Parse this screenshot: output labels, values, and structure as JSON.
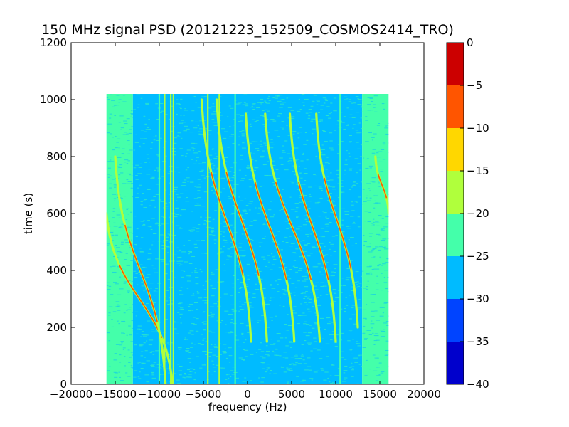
{
  "chart_data": {
    "type": "heatmap",
    "title": "150 MHz signal PSD (20121223_152509_COSMOS2414_TRO)",
    "xlabel": "frequency (Hz)",
    "ylabel": "time (s)",
    "xlim": [
      -20000,
      20000
    ],
    "ylim": [
      0,
      1200
    ],
    "x_ticks": [
      -20000,
      -15000,
      -10000,
      -5000,
      0,
      5000,
      10000,
      15000,
      20000
    ],
    "x_tick_labels": [
      "−20000",
      "−15000",
      "−10000",
      "−5000",
      "0",
      "5000",
      "10000",
      "15000",
      "20000"
    ],
    "y_ticks": [
      0,
      200,
      400,
      600,
      800,
      1000,
      1200
    ],
    "y_tick_labels": [
      "0",
      "200",
      "400",
      "600",
      "800",
      "1000",
      "1200"
    ],
    "data_extent": {
      "x": [
        -16000,
        16000
      ],
      "y": [
        0,
        1020
      ]
    },
    "grid": false,
    "colorbar": {
      "levels": [
        -40,
        -35,
        -30,
        -25,
        -20,
        -15,
        -10,
        -5,
        0
      ],
      "tick_labels": [
        "−40",
        "−35",
        "−30",
        "−25",
        "−20",
        "−15",
        "−10",
        "−5",
        "0"
      ],
      "colors": [
        "#0000cc",
        "#0044ff",
        "#00bbff",
        "#44ffaa",
        "#b0ff3c",
        "#ffd700",
        "#ff5500",
        "#cc0000"
      ]
    },
    "background_regions": [
      {
        "x": [
          -16000,
          -13000
        ],
        "level": "-25 to -20"
      },
      {
        "x": [
          -13000,
          13000
        ],
        "level": "-30 to -25"
      },
      {
        "x": [
          13000,
          16000
        ],
        "level": "-25 to -20"
      }
    ],
    "vertical_lines": [
      {
        "x": -10000,
        "level": "-25 to -20"
      },
      {
        "x": -9400,
        "level": "-20 to -15"
      },
      {
        "x": -8700,
        "level": "-20 to -15"
      },
      {
        "x": -8400,
        "level": "-20 to -15"
      },
      {
        "x": -4500,
        "level": "-20 to -15"
      },
      {
        "x": -3200,
        "level": "-20 to -15"
      },
      {
        "x": -1400,
        "level": "-25 to -20"
      },
      {
        "x": 10500,
        "level": "-25 to -20"
      }
    ],
    "series": [
      {
        "x_start": -16000,
        "t_start": 600,
        "x_end": -8500,
        "t_end": 0
      },
      {
        "x_start": -15000,
        "t_start": 800,
        "x_end": -9300,
        "t_end": 0
      },
      {
        "x_start": -5200,
        "t_start": 1000,
        "x_end": 400,
        "t_end": 150
      },
      {
        "x_start": -3500,
        "t_start": 1000,
        "x_end": 2200,
        "t_end": 150
      },
      {
        "x_start": -200,
        "t_start": 950,
        "x_end": 5300,
        "t_end": 150
      },
      {
        "x_start": 2000,
        "t_start": 950,
        "x_end": 8200,
        "t_end": 150
      },
      {
        "x_start": 4800,
        "t_start": 950,
        "x_end": 10000,
        "t_end": 150
      },
      {
        "x_start": 7800,
        "t_start": 950,
        "x_end": 12500,
        "t_end": 200
      },
      {
        "x_start": 14500,
        "t_start": 800,
        "x_end": 16000,
        "t_end": 600
      }
    ]
  }
}
